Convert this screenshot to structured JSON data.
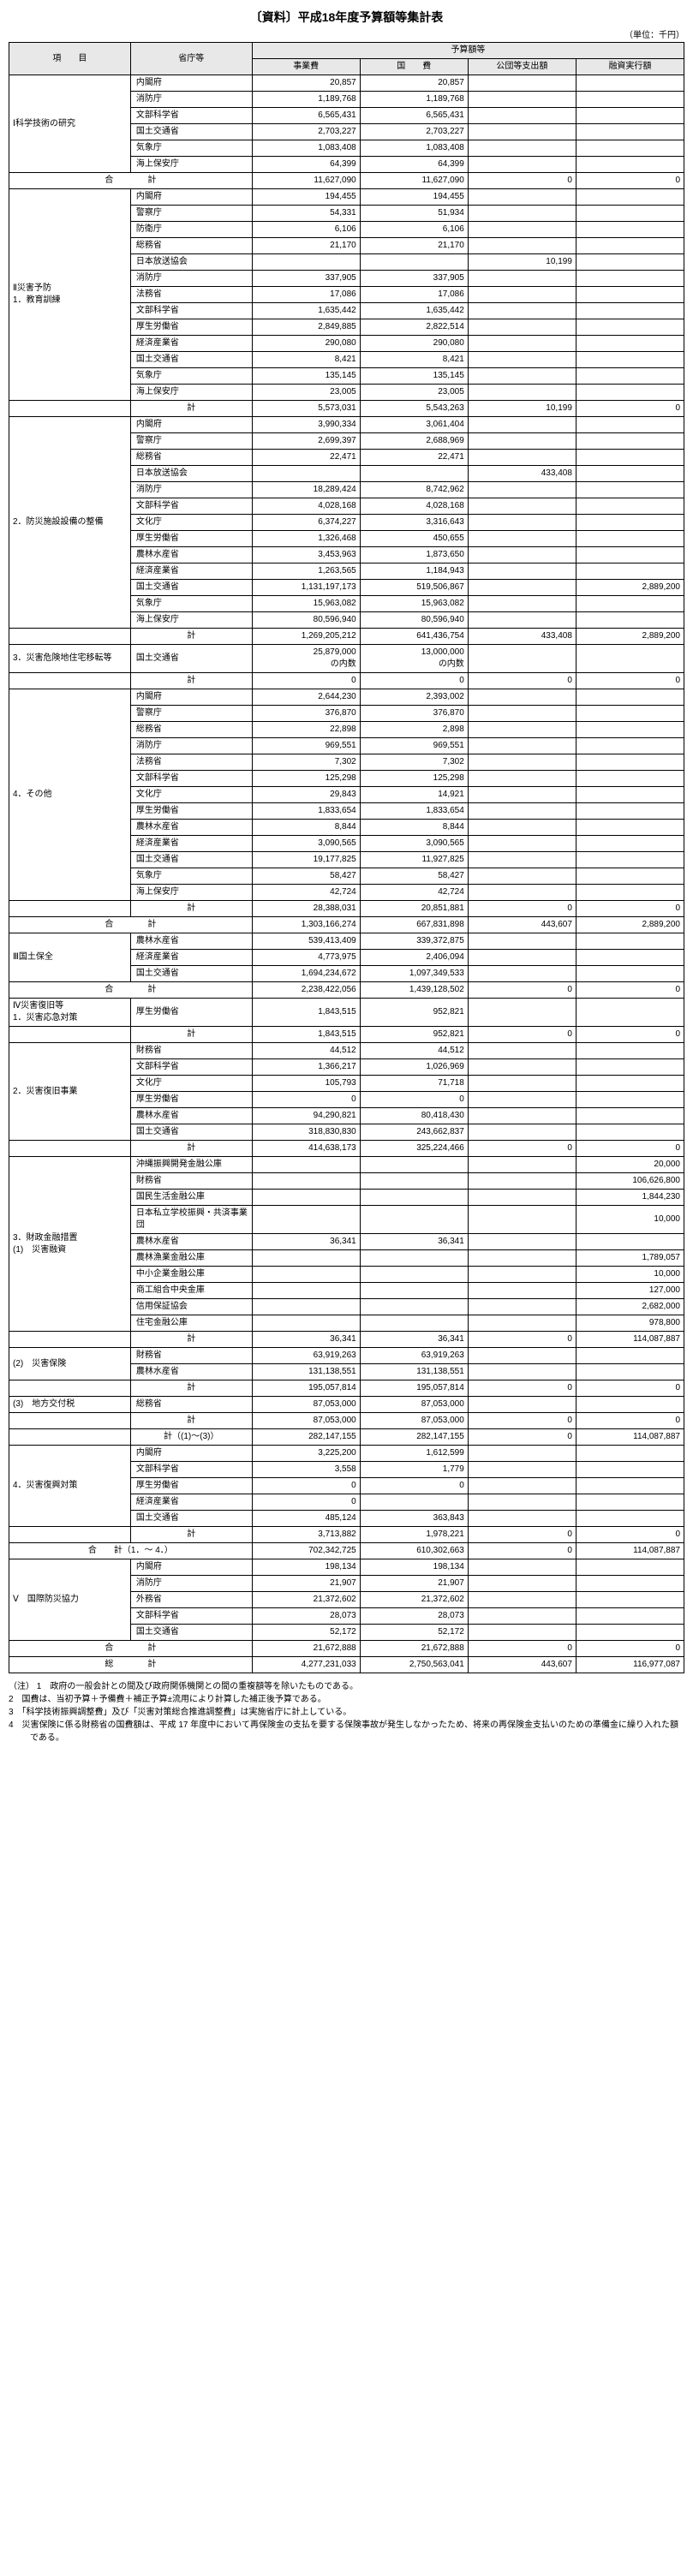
{
  "title": "〔資料〕平成18年度予算額等集計表",
  "unit": "（単位：千円）",
  "headers": {
    "item": "項　　目",
    "agency": "省庁等",
    "budget_group": "予算額等",
    "business": "事業費",
    "national": "国　　費",
    "public": "公団等支出額",
    "loan": "融資実行額"
  },
  "colwidths": {
    "item": "18%",
    "agency": "18%",
    "num": "16%"
  },
  "notes_label": "（注）",
  "notes": [
    "1　政府の一般会計との間及び政府関係機関との間の重複額等を除いたものである。",
    "2　国費は、当初予算＋予備費＋補正予算±流用により計算した補正後予算である。",
    "3　「科学技術振興調整費」及び「災害対策総合推進調整費」は実施省庁に計上している。",
    "4　災害保険に係る財務省の国費額は、平成 17 年度中において再保険金の支払を要する保険事故が発生しなかったため、将来の再保険金支払いのための準備金に繰り入れた額である。"
  ],
  "sections": [
    {
      "label": "Ⅰ科学技術の研究",
      "groups": [
        {
          "rows": [
            {
              "agency": "内閣府",
              "c": [
                "20,857",
                "20,857",
                "",
                ""
              ]
            },
            {
              "agency": "消防庁",
              "c": [
                "1,189,768",
                "1,189,768",
                "",
                ""
              ]
            },
            {
              "agency": "文部科学省",
              "c": [
                "6,565,431",
                "6,565,431",
                "",
                ""
              ]
            },
            {
              "agency": "国土交通省",
              "c": [
                "2,703,227",
                "2,703,227",
                "",
                ""
              ]
            },
            {
              "agency": "気象庁",
              "c": [
                "1,083,408",
                "1,083,408",
                "",
                ""
              ]
            },
            {
              "agency": "海上保安庁",
              "c": [
                "64,399",
                "64,399",
                "",
                ""
              ]
            }
          ]
        }
      ],
      "total": {
        "label": "合　　　　計",
        "c": [
          "11,627,090",
          "11,627,090",
          "0",
          "0"
        ]
      }
    },
    {
      "label": "Ⅱ災害予防",
      "groups": [
        {
          "label": "1．教育訓練",
          "rows": [
            {
              "agency": "内閣府",
              "c": [
                "194,455",
                "194,455",
                "",
                ""
              ]
            },
            {
              "agency": "警察庁",
              "c": [
                "54,331",
                "51,934",
                "",
                ""
              ]
            },
            {
              "agency": "防衛庁",
              "c": [
                "6,106",
                "6,106",
                "",
                ""
              ]
            },
            {
              "agency": "総務省",
              "c": [
                "21,170",
                "21,170",
                "",
                ""
              ]
            },
            {
              "agency": "日本放送協会",
              "c": [
                "",
                "",
                "10,199",
                ""
              ]
            },
            {
              "agency": "消防庁",
              "c": [
                "337,905",
                "337,905",
                "",
                ""
              ]
            },
            {
              "agency": "法務省",
              "c": [
                "17,086",
                "17,086",
                "",
                ""
              ]
            },
            {
              "agency": "文部科学省",
              "c": [
                "1,635,442",
                "1,635,442",
                "",
                ""
              ]
            },
            {
              "agency": "厚生労働省",
              "c": [
                "2,849,885",
                "2,822,514",
                "",
                ""
              ]
            },
            {
              "agency": "経済産業省",
              "c": [
                "290,080",
                "290,080",
                "",
                ""
              ]
            },
            {
              "agency": "国土交通省",
              "c": [
                "8,421",
                "8,421",
                "",
                ""
              ]
            },
            {
              "agency": "気象庁",
              "c": [
                "135,145",
                "135,145",
                "",
                ""
              ]
            },
            {
              "agency": "海上保安庁",
              "c": [
                "23,005",
                "23,005",
                "",
                ""
              ]
            }
          ],
          "subtotal": {
            "c": [
              "5,573,031",
              "5,543,263",
              "10,199",
              "0"
            ]
          }
        },
        {
          "label": "2．防災施設設備の整備",
          "rows": [
            {
              "agency": "内閣府",
              "c": [
                "3,990,334",
                "3,061,404",
                "",
                ""
              ]
            },
            {
              "agency": "警察庁",
              "c": [
                "2,699,397",
                "2,688,969",
                "",
                ""
              ]
            },
            {
              "agency": "総務省",
              "c": [
                "22,471",
                "22,471",
                "",
                ""
              ]
            },
            {
              "agency": "日本放送協会",
              "c": [
                "",
                "",
                "433,408",
                ""
              ]
            },
            {
              "agency": "消防庁",
              "c": [
                "18,289,424",
                "8,742,962",
                "",
                ""
              ]
            },
            {
              "agency": "文部科学省",
              "c": [
                "4,028,168",
                "4,028,168",
                "",
                ""
              ]
            },
            {
              "agency": "文化庁",
              "c": [
                "6,374,227",
                "3,316,643",
                "",
                ""
              ]
            },
            {
              "agency": "厚生労働省",
              "c": [
                "1,326,468",
                "450,655",
                "",
                ""
              ]
            },
            {
              "agency": "農林水産省",
              "c": [
                "3,453,963",
                "1,873,650",
                "",
                ""
              ]
            },
            {
              "agency": "経済産業省",
              "c": [
                "1,263,565",
                "1,184,943",
                "",
                ""
              ]
            },
            {
              "agency": "国土交通省",
              "c": [
                "1,131,197,173",
                "519,506,867",
                "",
                "2,889,200"
              ]
            },
            {
              "agency": "気象庁",
              "c": [
                "15,963,082",
                "15,963,082",
                "",
                ""
              ]
            },
            {
              "agency": "海上保安庁",
              "c": [
                "80,596,940",
                "80,596,940",
                "",
                ""
              ]
            }
          ],
          "subtotal": {
            "c": [
              "1,269,205,212",
              "641,436,754",
              "433,408",
              "2,889,200"
            ]
          }
        },
        {
          "label": "3．災害危険地住宅移転等",
          "rows": [
            {
              "agency": "国土交通省",
              "c": [
                "25,879,000\nの内数",
                "13,000,000\nの内数",
                "",
                ""
              ]
            }
          ],
          "subtotal": {
            "c": [
              "0",
              "0",
              "0",
              "0"
            ]
          }
        },
        {
          "label": "4．その他",
          "rows": [
            {
              "agency": "内閣府",
              "c": [
                "2,644,230",
                "2,393,002",
                "",
                ""
              ]
            },
            {
              "agency": "警察庁",
              "c": [
                "376,870",
                "376,870",
                "",
                ""
              ]
            },
            {
              "agency": "総務省",
              "c": [
                "22,898",
                "2,898",
                "",
                ""
              ]
            },
            {
              "agency": "消防庁",
              "c": [
                "969,551",
                "969,551",
                "",
                ""
              ]
            },
            {
              "agency": "法務省",
              "c": [
                "7,302",
                "7,302",
                "",
                ""
              ]
            },
            {
              "agency": "文部科学省",
              "c": [
                "125,298",
                "125,298",
                "",
                ""
              ]
            },
            {
              "agency": "文化庁",
              "c": [
                "29,843",
                "14,921",
                "",
                ""
              ]
            },
            {
              "agency": "厚生労働省",
              "c": [
                "1,833,654",
                "1,833,654",
                "",
                ""
              ]
            },
            {
              "agency": "農林水産省",
              "c": [
                "8,844",
                "8,844",
                "",
                ""
              ]
            },
            {
              "agency": "経済産業省",
              "c": [
                "3,090,565",
                "3,090,565",
                "",
                ""
              ]
            },
            {
              "agency": "国土交通省",
              "c": [
                "19,177,825",
                "11,927,825",
                "",
                ""
              ]
            },
            {
              "agency": "気象庁",
              "c": [
                "58,427",
                "58,427",
                "",
                ""
              ]
            },
            {
              "agency": "海上保安庁",
              "c": [
                "42,724",
                "42,724",
                "",
                ""
              ]
            }
          ],
          "subtotal": {
            "c": [
              "28,388,031",
              "20,851,881",
              "0",
              "0"
            ]
          }
        }
      ],
      "total": {
        "label": "合　　　　計",
        "c": [
          "1,303,166,274",
          "667,831,898",
          "443,607",
          "2,889,200"
        ]
      }
    },
    {
      "label": "Ⅲ国土保全",
      "groups": [
        {
          "rows": [
            {
              "agency": "農林水産省",
              "c": [
                "539,413,409",
                "339,372,875",
                "",
                ""
              ]
            },
            {
              "agency": "経済産業省",
              "c": [
                "4,773,975",
                "2,406,094",
                "",
                ""
              ]
            },
            {
              "agency": "国土交通省",
              "c": [
                "1,694,234,672",
                "1,097,349,533",
                "",
                ""
              ]
            }
          ]
        }
      ],
      "total": {
        "label": "合　　　　計",
        "c": [
          "2,238,422,056",
          "1,439,128,502",
          "0",
          "0"
        ]
      }
    },
    {
      "label": "Ⅳ災害復旧等",
      "groups": [
        {
          "label": "1．災害応急対策",
          "rows": [
            {
              "agency": "厚生労働省",
              "c": [
                "1,843,515",
                "952,821",
                "",
                ""
              ]
            }
          ],
          "subtotal": {
            "c": [
              "1,843,515",
              "952,821",
              "0",
              "0"
            ]
          }
        },
        {
          "label": "2．災害復旧事業",
          "rows": [
            {
              "agency": "財務省",
              "c": [
                "44,512",
                "44,512",
                "",
                ""
              ]
            },
            {
              "agency": "文部科学省",
              "c": [
                "1,366,217",
                "1,026,969",
                "",
                ""
              ]
            },
            {
              "agency": "文化庁",
              "c": [
                "105,793",
                "71,718",
                "",
                ""
              ]
            },
            {
              "agency": "厚生労働省",
              "c": [
                "0",
                "0",
                "",
                ""
              ]
            },
            {
              "agency": "農林水産省",
              "c": [
                "94,290,821",
                "80,418,430",
                "",
                ""
              ]
            },
            {
              "agency": "国土交通省",
              "c": [
                "318,830,830",
                "243,662,837",
                "",
                ""
              ]
            }
          ],
          "subtotal": {
            "c": [
              "414,638,173",
              "325,224,466",
              "0",
              "0"
            ]
          }
        },
        {
          "label": "3．財政金融措置\n(1)　災害融資",
          "rows": [
            {
              "agency": "沖縄振興開発金融公庫",
              "c": [
                "",
                "",
                "",
                "20,000"
              ]
            },
            {
              "agency": "財務省",
              "c": [
                "",
                "",
                "",
                "106,626,800"
              ]
            },
            {
              "agency": "国民生活金融公庫",
              "c": [
                "",
                "",
                "",
                "1,844,230"
              ]
            },
            {
              "agency": "日本私立学校振興・共済事業団",
              "c": [
                "",
                "",
                "",
                "10,000"
              ]
            },
            {
              "agency": "農林水産省",
              "c": [
                "36,341",
                "36,341",
                "",
                ""
              ]
            },
            {
              "agency": "農林漁業金融公庫",
              "c": [
                "",
                "",
                "",
                "1,789,057"
              ]
            },
            {
              "agency": "中小企業金融公庫",
              "c": [
                "",
                "",
                "",
                "10,000"
              ]
            },
            {
              "agency": "商工組合中央金庫",
              "c": [
                "",
                "",
                "",
                "127,000"
              ]
            },
            {
              "agency": "信用保証協会",
              "c": [
                "",
                "",
                "",
                "2,682,000"
              ]
            },
            {
              "agency": "住宅金融公庫",
              "c": [
                "",
                "",
                "",
                "978,800"
              ]
            }
          ],
          "subtotal": {
            "c": [
              "36,341",
              "36,341",
              "0",
              "114,087,887"
            ]
          }
        },
        {
          "label": "(2)　災害保険",
          "rows": [
            {
              "agency": "財務省",
              "c": [
                "63,919,263",
                "63,919,263",
                "",
                ""
              ]
            },
            {
              "agency": "農林水産省",
              "c": [
                "131,138,551",
                "131,138,551",
                "",
                ""
              ]
            }
          ],
          "subtotal": {
            "c": [
              "195,057,814",
              "195,057,814",
              "0",
              "0"
            ]
          }
        },
        {
          "label": "(3)　地方交付税",
          "rows": [
            {
              "agency": "総務省",
              "c": [
                "87,053,000",
                "87,053,000",
                "",
                ""
              ]
            }
          ],
          "subtotal": {
            "c": [
              "87,053,000",
              "87,053,000",
              "0",
              "0"
            ]
          },
          "subtotal2": {
            "label": "計（(1)～(3)）",
            "c": [
              "282,147,155",
              "282,147,155",
              "0",
              "114,087,887"
            ]
          }
        },
        {
          "label": "4．災害復興対策",
          "rows": [
            {
              "agency": "内閣府",
              "c": [
                "3,225,200",
                "1,612,599",
                "",
                ""
              ]
            },
            {
              "agency": "文部科学省",
              "c": [
                "3,558",
                "1,779",
                "",
                ""
              ]
            },
            {
              "agency": "厚生労働省",
              "c": [
                "0",
                "0",
                "",
                ""
              ]
            },
            {
              "agency": "経済産業省",
              "c": [
                "0",
                "",
                "",
                ""
              ]
            },
            {
              "agency": "国土交通省",
              "c": [
                "485,124",
                "363,843",
                "",
                ""
              ]
            }
          ],
          "subtotal": {
            "c": [
              "3,713,882",
              "1,978,221",
              "0",
              "0"
            ]
          }
        }
      ],
      "total": {
        "label": "合　　計（1．～ 4．）",
        "c": [
          "702,342,725",
          "610,302,663",
          "0",
          "114,087,887"
        ]
      }
    },
    {
      "label": "Ⅴ　国際防災協力",
      "groups": [
        {
          "rows": [
            {
              "agency": "内閣府",
              "c": [
                "198,134",
                "198,134",
                "",
                ""
              ]
            },
            {
              "agency": "消防庁",
              "c": [
                "21,907",
                "21,907",
                "",
                ""
              ]
            },
            {
              "agency": "外務省",
              "c": [
                "21,372,602",
                "21,372,602",
                "",
                ""
              ]
            },
            {
              "agency": "文部科学省",
              "c": [
                "28,073",
                "28,073",
                "",
                ""
              ]
            },
            {
              "agency": "国土交通省",
              "c": [
                "52,172",
                "52,172",
                "",
                ""
              ]
            }
          ]
        }
      ],
      "total": {
        "label": "合　　　　計",
        "c": [
          "21,672,888",
          "21,672,888",
          "0",
          "0"
        ]
      }
    }
  ],
  "grand_total": {
    "label": "総　　　　計",
    "c": [
      "4,277,231,033",
      "2,750,563,041",
      "443,607",
      "116,977,087"
    ]
  },
  "subtotal_label": "計"
}
